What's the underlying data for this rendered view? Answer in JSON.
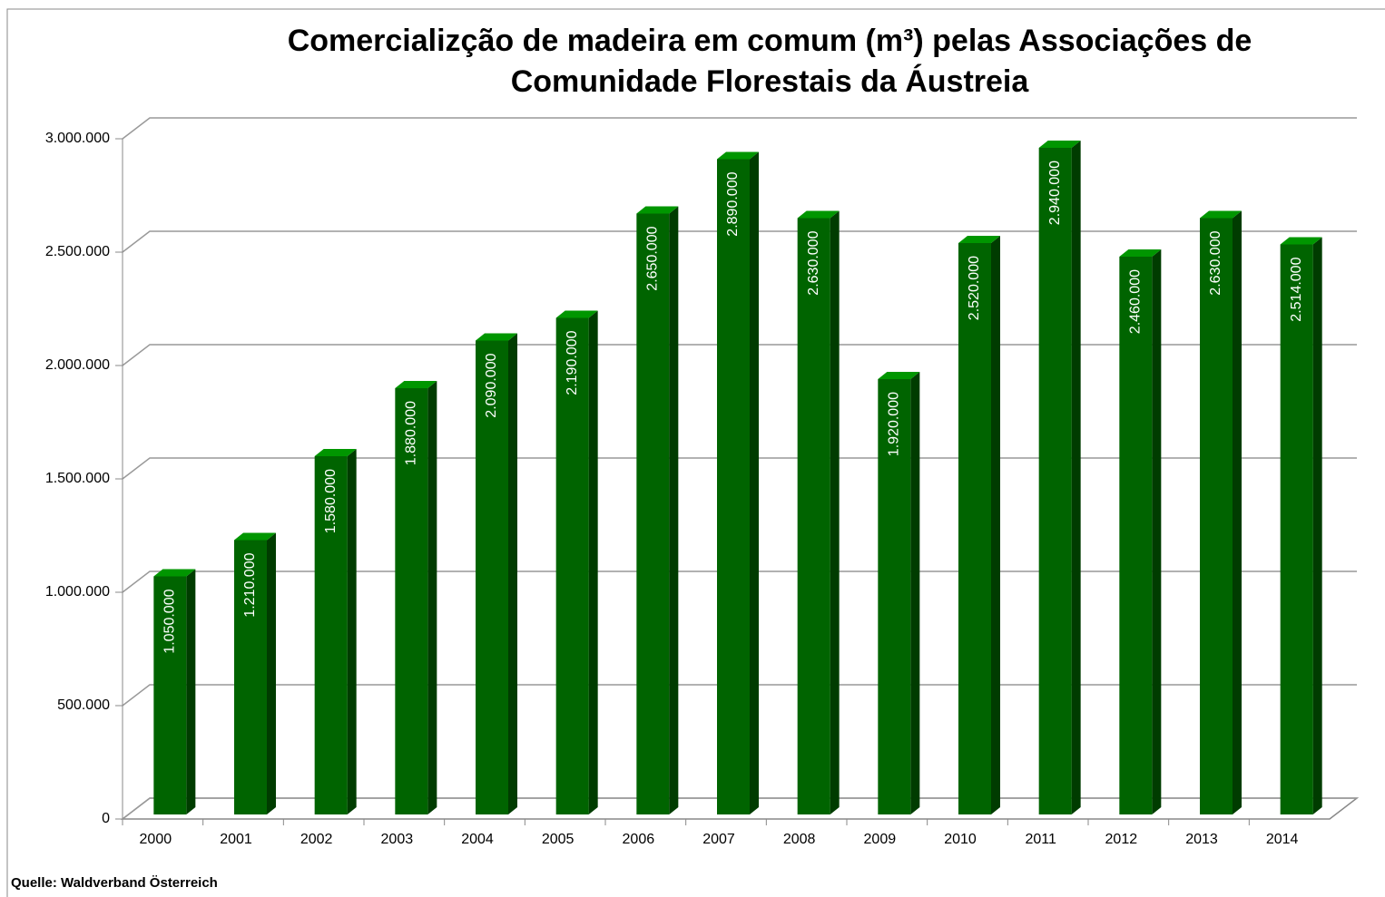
{
  "chart_data": {
    "type": "bar3d",
    "title": [
      "Comercializção de madeira em comum (m³) pelas Associações de",
      "Comunidade Florestais da Áustreia"
    ],
    "source": "Quelle: Waldverband Österreich",
    "categories": [
      "2000",
      "2001",
      "2002",
      "2003",
      "2004",
      "2005",
      "2006",
      "2007",
      "2008",
      "2009",
      "2010",
      "2011",
      "2012",
      "2013",
      "2014"
    ],
    "values": [
      1050000,
      1210000,
      1580000,
      1880000,
      2090000,
      2190000,
      2650000,
      2890000,
      2630000,
      1920000,
      2520000,
      2940000,
      2460000,
      2630000,
      2514000
    ],
    "value_labels": [
      "1.050.000",
      "1.210.000",
      "1.580.000",
      "1.880.000",
      "2.090.000",
      "2.190.000",
      "2.650.000",
      "2.890.000",
      "2.630.000",
      "1.920.000",
      "2.520.000",
      "2.940.000",
      "2.460.000",
      "2.630.000",
      "2.514.000"
    ],
    "color": "#006400",
    "ylim": [
      0,
      3000000
    ],
    "yticks": [
      0,
      {
        "value": 500000,
        "label": "500.000"
      },
      {
        "value": 1000000,
        "label": "1.000.000"
      },
      {
        "value": 1500000,
        "label": "1.500.000"
      },
      {
        "value": 2000000,
        "label": "2.000.000"
      },
      {
        "value": 2500000,
        "label": "2.500.000"
      },
      {
        "value": 3000000,
        "label": "3.000.000"
      }
    ],
    "grid": true
  }
}
